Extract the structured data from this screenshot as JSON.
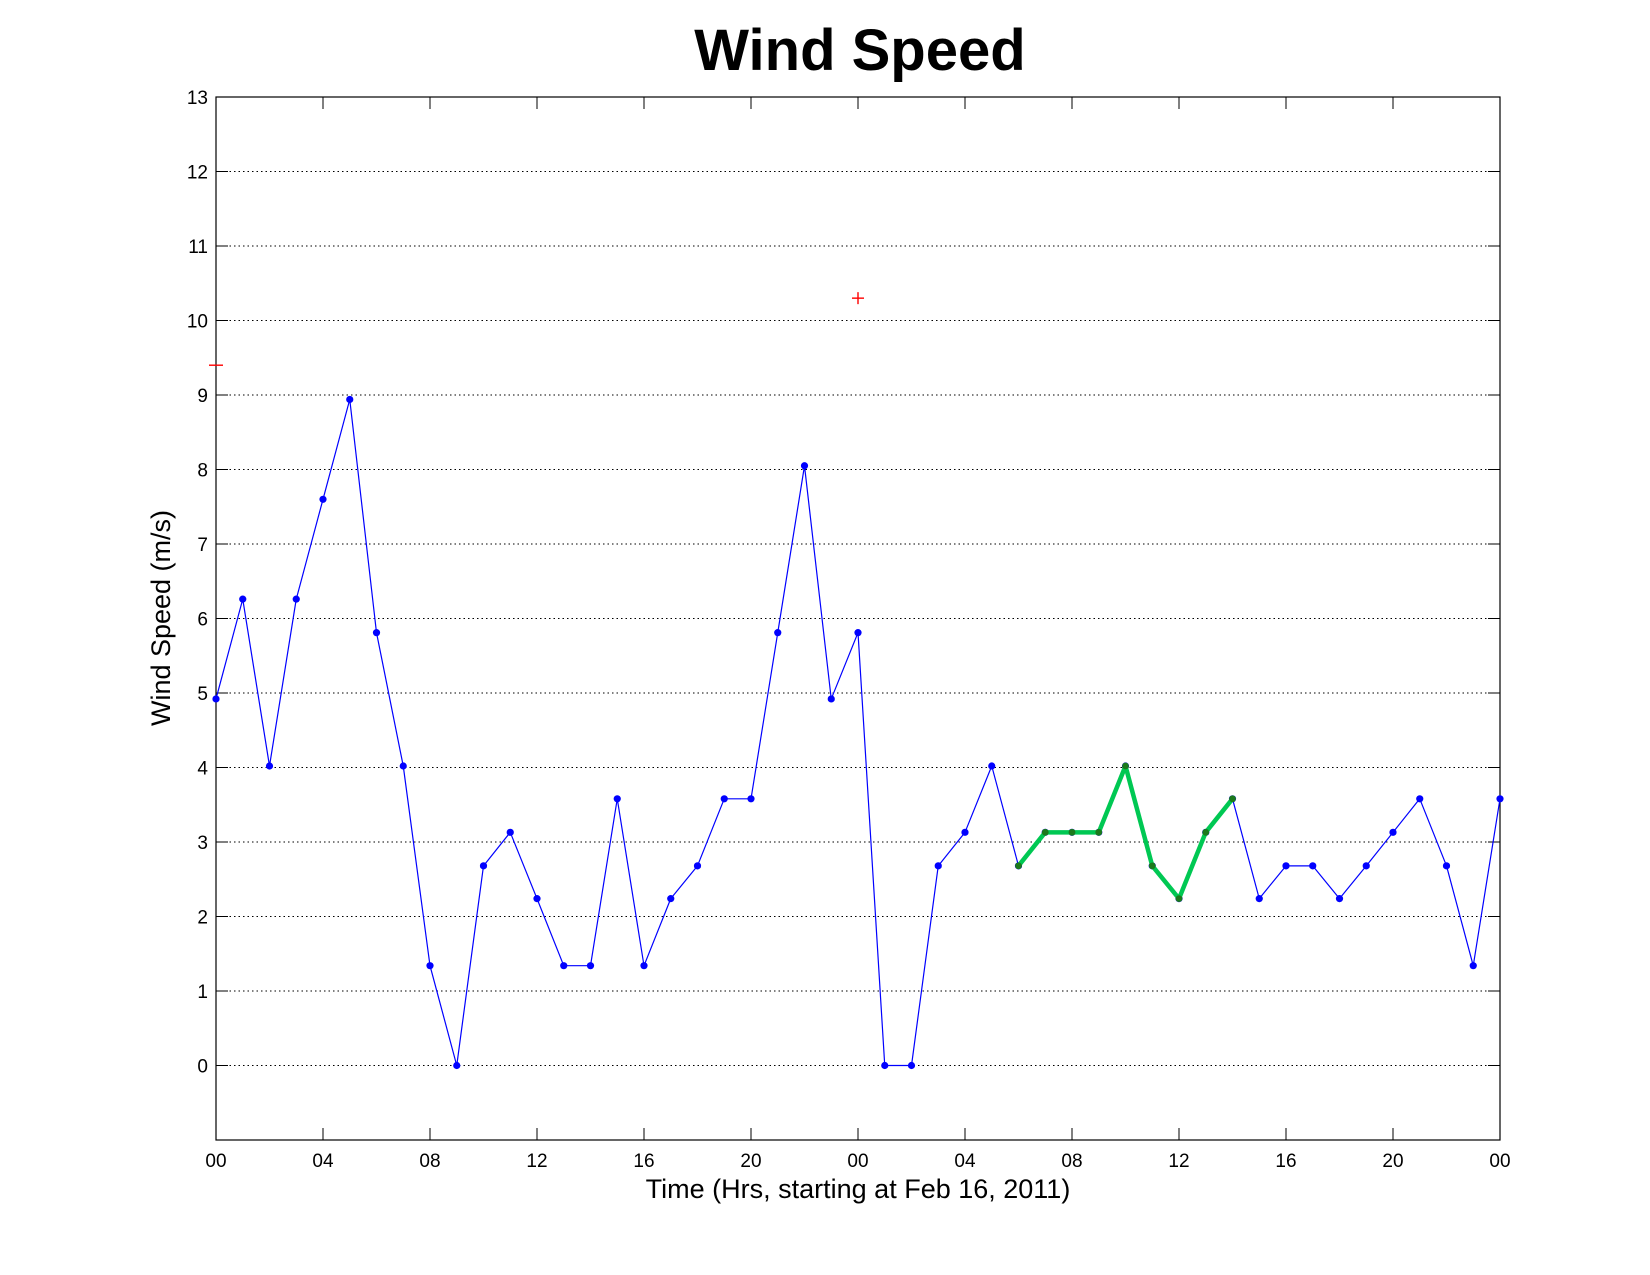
{
  "chart_data": {
    "type": "line",
    "title": "Wind Speed",
    "xlabel": "Time (Hrs, starting at Feb 16, 2011)",
    "ylabel": "Wind Speed (m/s)",
    "xlim": [
      0,
      48
    ],
    "ylim": [
      -1,
      13
    ],
    "grid": "horizontal dotted",
    "x_ticks": [
      0,
      4,
      8,
      12,
      16,
      20,
      24,
      28,
      32,
      36,
      40,
      44,
      48
    ],
    "x_tick_labels": [
      "00",
      "04",
      "08",
      "12",
      "16",
      "20",
      "00",
      "04",
      "08",
      "12",
      "16",
      "20",
      "00"
    ],
    "y_ticks": [
      0,
      1,
      2,
      3,
      4,
      5,
      6,
      7,
      8,
      9,
      10,
      11,
      12,
      13
    ],
    "y_tick_labels": [
      "0",
      "1",
      "2",
      "3",
      "4",
      "5",
      "6",
      "7",
      "8",
      "9",
      "10",
      "11",
      "12",
      "13"
    ],
    "series": [
      {
        "color": "#0000ff",
        "marker": "dot",
        "x": [
          0,
          1,
          2,
          3,
          4,
          5,
          6,
          7,
          8,
          9,
          10,
          11,
          12,
          13,
          14,
          15,
          16,
          17,
          18,
          19,
          20,
          21,
          22,
          23,
          24,
          25,
          26,
          27,
          28,
          29,
          30,
          31,
          32,
          33,
          34,
          35,
          36,
          37,
          38,
          39,
          40,
          41,
          42,
          43,
          44,
          45,
          46,
          47,
          48
        ],
        "values": [
          4.92,
          6.26,
          4.02,
          6.26,
          7.6,
          8.94,
          5.81,
          4.02,
          1.34,
          0,
          2.68,
          3.13,
          2.24,
          1.34,
          1.34,
          3.58,
          1.34,
          2.24,
          2.68,
          3.58,
          3.58,
          5.81,
          8.05,
          4.92,
          5.81,
          0,
          0,
          2.68,
          3.13,
          4.02,
          2.68,
          3.13,
          3.13,
          3.13,
          4.02,
          2.68,
          2.24,
          3.13,
          3.58,
          2.24,
          2.68,
          2.68,
          2.24,
          2.68,
          3.13,
          3.58,
          2.68,
          1.34,
          3.58
        ]
      },
      {
        "color": "#00c853",
        "marker": "dot",
        "x": [
          30,
          31,
          32,
          33,
          34,
          35,
          36,
          37,
          38
        ],
        "values": [
          2.68,
          3.13,
          3.13,
          3.13,
          4.02,
          2.68,
          2.24,
          3.13,
          3.58
        ]
      }
    ],
    "annotations": [
      {
        "type": "plus",
        "color": "#ff0000",
        "x": 24,
        "y": 10.3
      },
      {
        "type": "dash",
        "color": "#ff0000",
        "x": 0,
        "y": 9.4
      }
    ]
  }
}
